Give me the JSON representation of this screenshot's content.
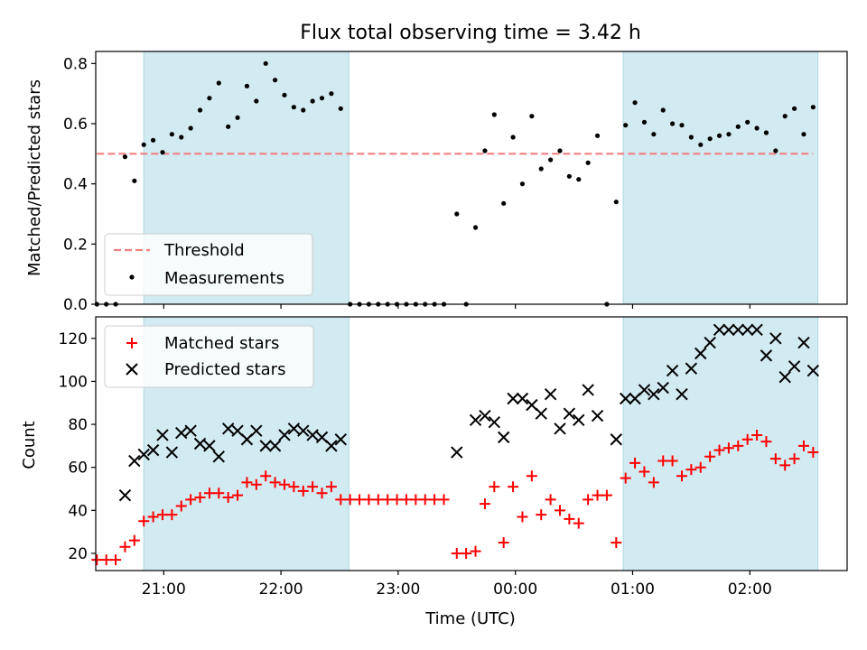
{
  "chart_data": {
    "title": "Flux total observing time = 3.42 h",
    "xlabel": "Time (UTC)",
    "x_unit": "hours (UTC, continuing past midnight)",
    "xlim": [
      20.42,
      26.83
    ],
    "x_ticks": [
      {
        "value": 21,
        "label": "21:00"
      },
      {
        "value": 22,
        "label": "22:00"
      },
      {
        "value": 23,
        "label": "23:00"
      },
      {
        "value": 24,
        "label": "00:00"
      },
      {
        "value": 25,
        "label": "01:00"
      },
      {
        "value": 26,
        "label": "02:00"
      }
    ],
    "shaded_intervals": [
      [
        20.83,
        22.58
      ],
      [
        24.92,
        26.58
      ]
    ],
    "shade_color": "#add8e6",
    "top": {
      "type": "scatter",
      "ylabel": "Matched/Predicted stars",
      "ylim": [
        0,
        0.84
      ],
      "y_ticks": [
        0.0,
        0.2,
        0.4,
        0.6,
        0.8
      ],
      "y_tick_labels": [
        "0.0",
        "0.2",
        "0.4",
        "0.6",
        "0.8"
      ],
      "threshold": {
        "name": "Threshold",
        "value": 0.5,
        "color": "#f08080"
      },
      "series": {
        "name": "Measurements",
        "color": "#000000",
        "x": [
          20.43,
          20.51,
          20.59,
          20.67,
          20.75,
          20.83,
          20.91,
          20.99,
          21.07,
          21.15,
          21.23,
          21.31,
          21.39,
          21.47,
          21.55,
          21.63,
          21.71,
          21.79,
          21.87,
          21.95,
          22.03,
          22.11,
          22.19,
          22.27,
          22.35,
          22.43,
          22.51,
          22.59,
          22.67,
          22.75,
          22.83,
          22.91,
          22.99,
          23.07,
          23.15,
          23.23,
          23.31,
          23.39,
          23.5,
          23.58,
          23.66,
          23.74,
          23.82,
          23.9,
          23.98,
          24.06,
          24.14,
          24.22,
          24.3,
          24.38,
          24.46,
          24.54,
          24.62,
          24.7,
          24.78,
          24.86,
          24.94,
          25.02,
          25.1,
          25.18,
          25.26,
          25.34,
          25.42,
          25.5,
          25.58,
          25.66,
          25.74,
          25.82,
          25.9,
          25.98,
          26.06,
          26.14,
          26.22,
          26.3,
          26.38,
          26.46,
          26.54
        ],
        "y": [
          0.0,
          0.0,
          0.0,
          0.49,
          0.41,
          0.53,
          0.545,
          0.505,
          0.565,
          0.555,
          0.585,
          0.645,
          0.685,
          0.735,
          0.59,
          0.62,
          0.725,
          0.675,
          0.8,
          0.745,
          0.695,
          0.655,
          0.645,
          0.675,
          0.685,
          0.7,
          0.65,
          0.0,
          0.0,
          0.0,
          0.0,
          0.0,
          0.0,
          0.0,
          0.0,
          0.0,
          0.0,
          0.0,
          0.3,
          0.0,
          0.255,
          0.51,
          0.63,
          0.335,
          0.555,
          0.4,
          0.625,
          0.45,
          0.48,
          0.51,
          0.425,
          0.415,
          0.47,
          0.56,
          0.0,
          0.34,
          0.595,
          0.67,
          0.605,
          0.565,
          0.645,
          0.6,
          0.595,
          0.555,
          0.53,
          0.55,
          0.56,
          0.565,
          0.59,
          0.605,
          0.585,
          0.57,
          0.51,
          0.625,
          0.65,
          0.565,
          0.655
        ]
      },
      "legend": {
        "position": "lower-left",
        "entries": [
          "Threshold",
          "Measurements"
        ]
      }
    },
    "bottom": {
      "type": "scatter",
      "ylabel": "Count",
      "ylim": [
        12,
        130
      ],
      "y_ticks": [
        20,
        40,
        60,
        80,
        100,
        120
      ],
      "y_tick_labels": [
        "20",
        "40",
        "60",
        "80",
        "100",
        "120"
      ],
      "series": [
        {
          "name": "Matched stars",
          "marker": "+",
          "color": "#ff0000",
          "x": [
            20.43,
            20.51,
            20.59,
            20.67,
            20.75,
            20.83,
            20.91,
            20.99,
            21.07,
            21.15,
            21.23,
            21.31,
            21.39,
            21.47,
            21.55,
            21.63,
            21.71,
            21.79,
            21.87,
            21.95,
            22.03,
            22.11,
            22.19,
            22.27,
            22.35,
            22.43,
            22.51,
            22.59,
            22.67,
            22.75,
            22.83,
            22.91,
            22.99,
            23.07,
            23.15,
            23.23,
            23.31,
            23.39,
            23.5,
            23.58,
            23.66,
            23.74,
            23.82,
            23.9,
            23.98,
            24.06,
            24.14,
            24.22,
            24.3,
            24.38,
            24.46,
            24.54,
            24.62,
            24.7,
            24.78,
            24.86,
            24.94,
            25.02,
            25.1,
            25.18,
            25.26,
            25.34,
            25.42,
            25.5,
            25.58,
            25.66,
            25.74,
            25.82,
            25.9,
            25.98,
            26.06,
            26.14,
            26.22,
            26.3,
            26.38,
            26.46,
            26.54
          ],
          "y": [
            17,
            17,
            17,
            23,
            26,
            35,
            37,
            38,
            38,
            42,
            45,
            46,
            48,
            48,
            46,
            47,
            53,
            52,
            56,
            53,
            52,
            51,
            49,
            51,
            48,
            51,
            45,
            45,
            45,
            45,
            45,
            45,
            45,
            45,
            45,
            45,
            45,
            45,
            20,
            20,
            21,
            43,
            51,
            25,
            51,
            37,
            56,
            38,
            45,
            40,
            36,
            34,
            45,
            47,
            47,
            25,
            55,
            62,
            58,
            53,
            63,
            63,
            56,
            59,
            60,
            65,
            68,
            69,
            70,
            73,
            75,
            72,
            64,
            61,
            64,
            70,
            67
          ]
        },
        {
          "name": "Predicted stars",
          "marker": "x",
          "color": "#000000",
          "x": [
            20.67,
            20.75,
            20.83,
            20.91,
            20.99,
            21.07,
            21.15,
            21.23,
            21.31,
            21.39,
            21.47,
            21.55,
            21.63,
            21.71,
            21.79,
            21.87,
            21.95,
            22.03,
            22.11,
            22.19,
            22.27,
            22.35,
            22.43,
            22.51,
            23.5,
            23.66,
            23.74,
            23.82,
            23.9,
            23.98,
            24.06,
            24.14,
            24.22,
            24.3,
            24.38,
            24.46,
            24.54,
            24.62,
            24.7,
            24.86,
            24.94,
            25.02,
            25.1,
            25.18,
            25.26,
            25.34,
            25.42,
            25.5,
            25.58,
            25.66,
            25.74,
            25.82,
            25.9,
            25.98,
            26.06,
            26.14,
            26.22,
            26.3,
            26.38,
            26.46,
            26.54
          ],
          "y": [
            47,
            63,
            66,
            68,
            75,
            67,
            76,
            77,
            71,
            70,
            65,
            78,
            77,
            73,
            77,
            70,
            70,
            75,
            78,
            77,
            75,
            74,
            70,
            73,
            67,
            82,
            84,
            81,
            74,
            92,
            92,
            89,
            85,
            94,
            78,
            85,
            82,
            96,
            84,
            73,
            92,
            92,
            96,
            94,
            97,
            105,
            94,
            106,
            113,
            118,
            124,
            124,
            124,
            124,
            124,
            112,
            120,
            102,
            107,
            118,
            105
          ]
        }
      ],
      "legend": {
        "position": "upper-left",
        "entries": [
          "Matched stars",
          "Predicted stars"
        ]
      }
    }
  }
}
